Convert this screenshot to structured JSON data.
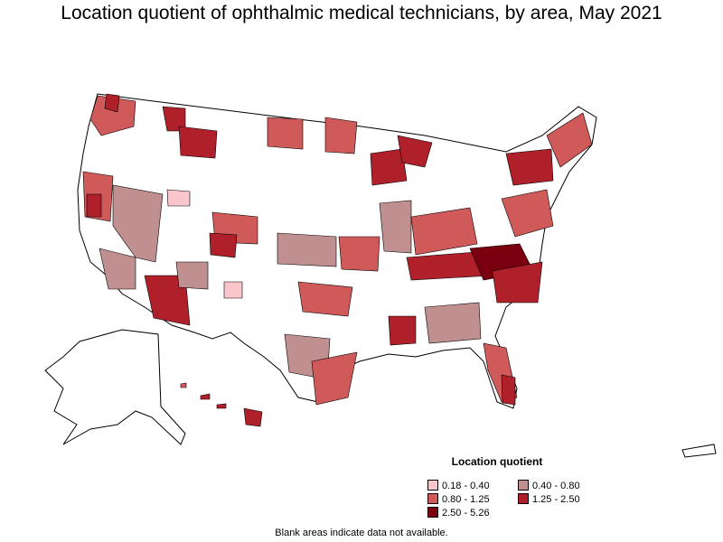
{
  "title": "Location quotient of ophthalmic medical technicians, by area, May 2021",
  "legend": {
    "title": "Location quotient",
    "items": [
      {
        "label": "0.18 - 0.40",
        "color": "#f9c6cc"
      },
      {
        "label": "0.40 - 0.80",
        "color": "#c09090"
      },
      {
        "label": "0.80 - 1.25",
        "color": "#d05a5a"
      },
      {
        "label": "1.25 - 2.50",
        "color": "#b0202a"
      },
      {
        "label": "2.50 - 5.26",
        "color": "#7a0010"
      }
    ]
  },
  "footnote": "Blank areas indicate data not available.",
  "colors": {
    "no_data": "#ffffff",
    "border": "#000000"
  }
}
